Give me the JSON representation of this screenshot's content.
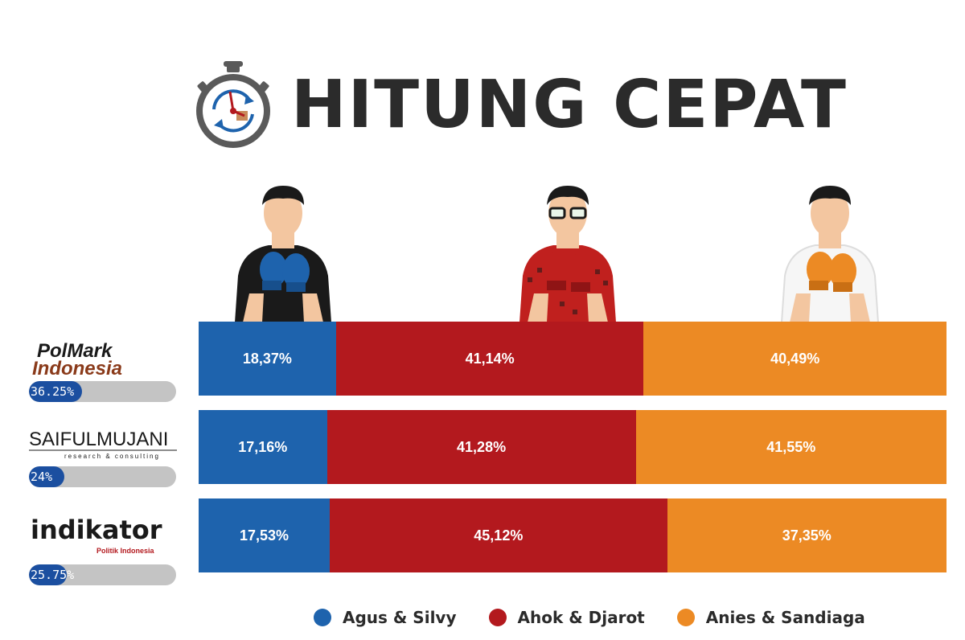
{
  "title": "HITUNG CEPAT",
  "colors": {
    "blue": "#1e63ad",
    "red": "#b3191e",
    "orange": "#ec8a24",
    "progress_bg": "#c4c4c4",
    "progress_fill": "#1b4fa0"
  },
  "icons": {
    "title": "stopwatch-icon"
  },
  "chart_data": {
    "type": "bar",
    "orientation": "horizontal-stacked-100",
    "categories": [
      "PolMark Indonesia",
      "SAIFULMUJANI",
      "indikator"
    ],
    "series": [
      {
        "name": "Agus & Silvy",
        "color": "#1e63ad",
        "values": [
          18.37,
          17.16,
          17.53
        ],
        "labels": [
          "18,37%",
          "17,16%",
          "17,53%"
        ]
      },
      {
        "name": "Ahok & Djarot",
        "color": "#b3191e",
        "values": [
          41.14,
          41.28,
          45.12
        ],
        "labels": [
          "41,14%",
          "41,28%",
          "45,12%"
        ]
      },
      {
        "name": "Anies & Sandiaga",
        "color": "#ec8a24",
        "values": [
          40.49,
          41.55,
          37.35
        ],
        "labels": [
          "40,49%",
          "41,55%",
          "37,35%"
        ]
      }
    ],
    "legend": "bottom"
  },
  "pollsters": [
    {
      "logo_line1": "PolMark",
      "logo_line2": "Indonesia",
      "progress_label": "36.25%",
      "progress": 36.25
    },
    {
      "logo_line1": "SAIFULMUJANI",
      "logo_line2": "research & consulting",
      "progress_label": "24%",
      "progress": 24
    },
    {
      "logo_line1": "indikator",
      "logo_line2": "Politik Indonesia",
      "progress_label": "25.75%",
      "progress": 25.75
    }
  ]
}
